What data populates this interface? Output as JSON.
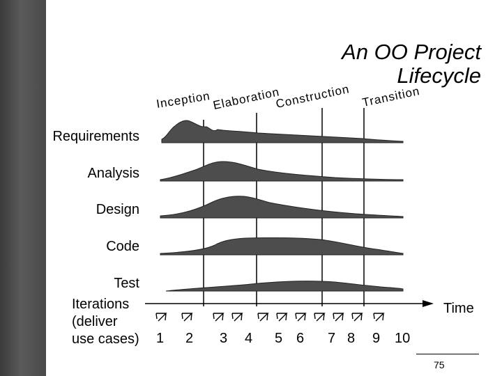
{
  "title": [
    "An OO Project",
    "Lifecycle"
  ],
  "phases": [
    "Inception",
    "Elaboration",
    "Construction",
    "Transition"
  ],
  "workflows": [
    "Requirements",
    "Analysis",
    "Design",
    "Code",
    "Test"
  ],
  "iterations": {
    "label_lines": [
      "Iterations",
      "(deliver",
      "use cases)"
    ],
    "numbers": [
      "1",
      "2",
      "3",
      "4",
      "5",
      "6",
      "7",
      "8",
      "9",
      "10"
    ],
    "icon": "cycle-arrow-icon"
  },
  "axis_label": "Time",
  "page_number": "75"
}
